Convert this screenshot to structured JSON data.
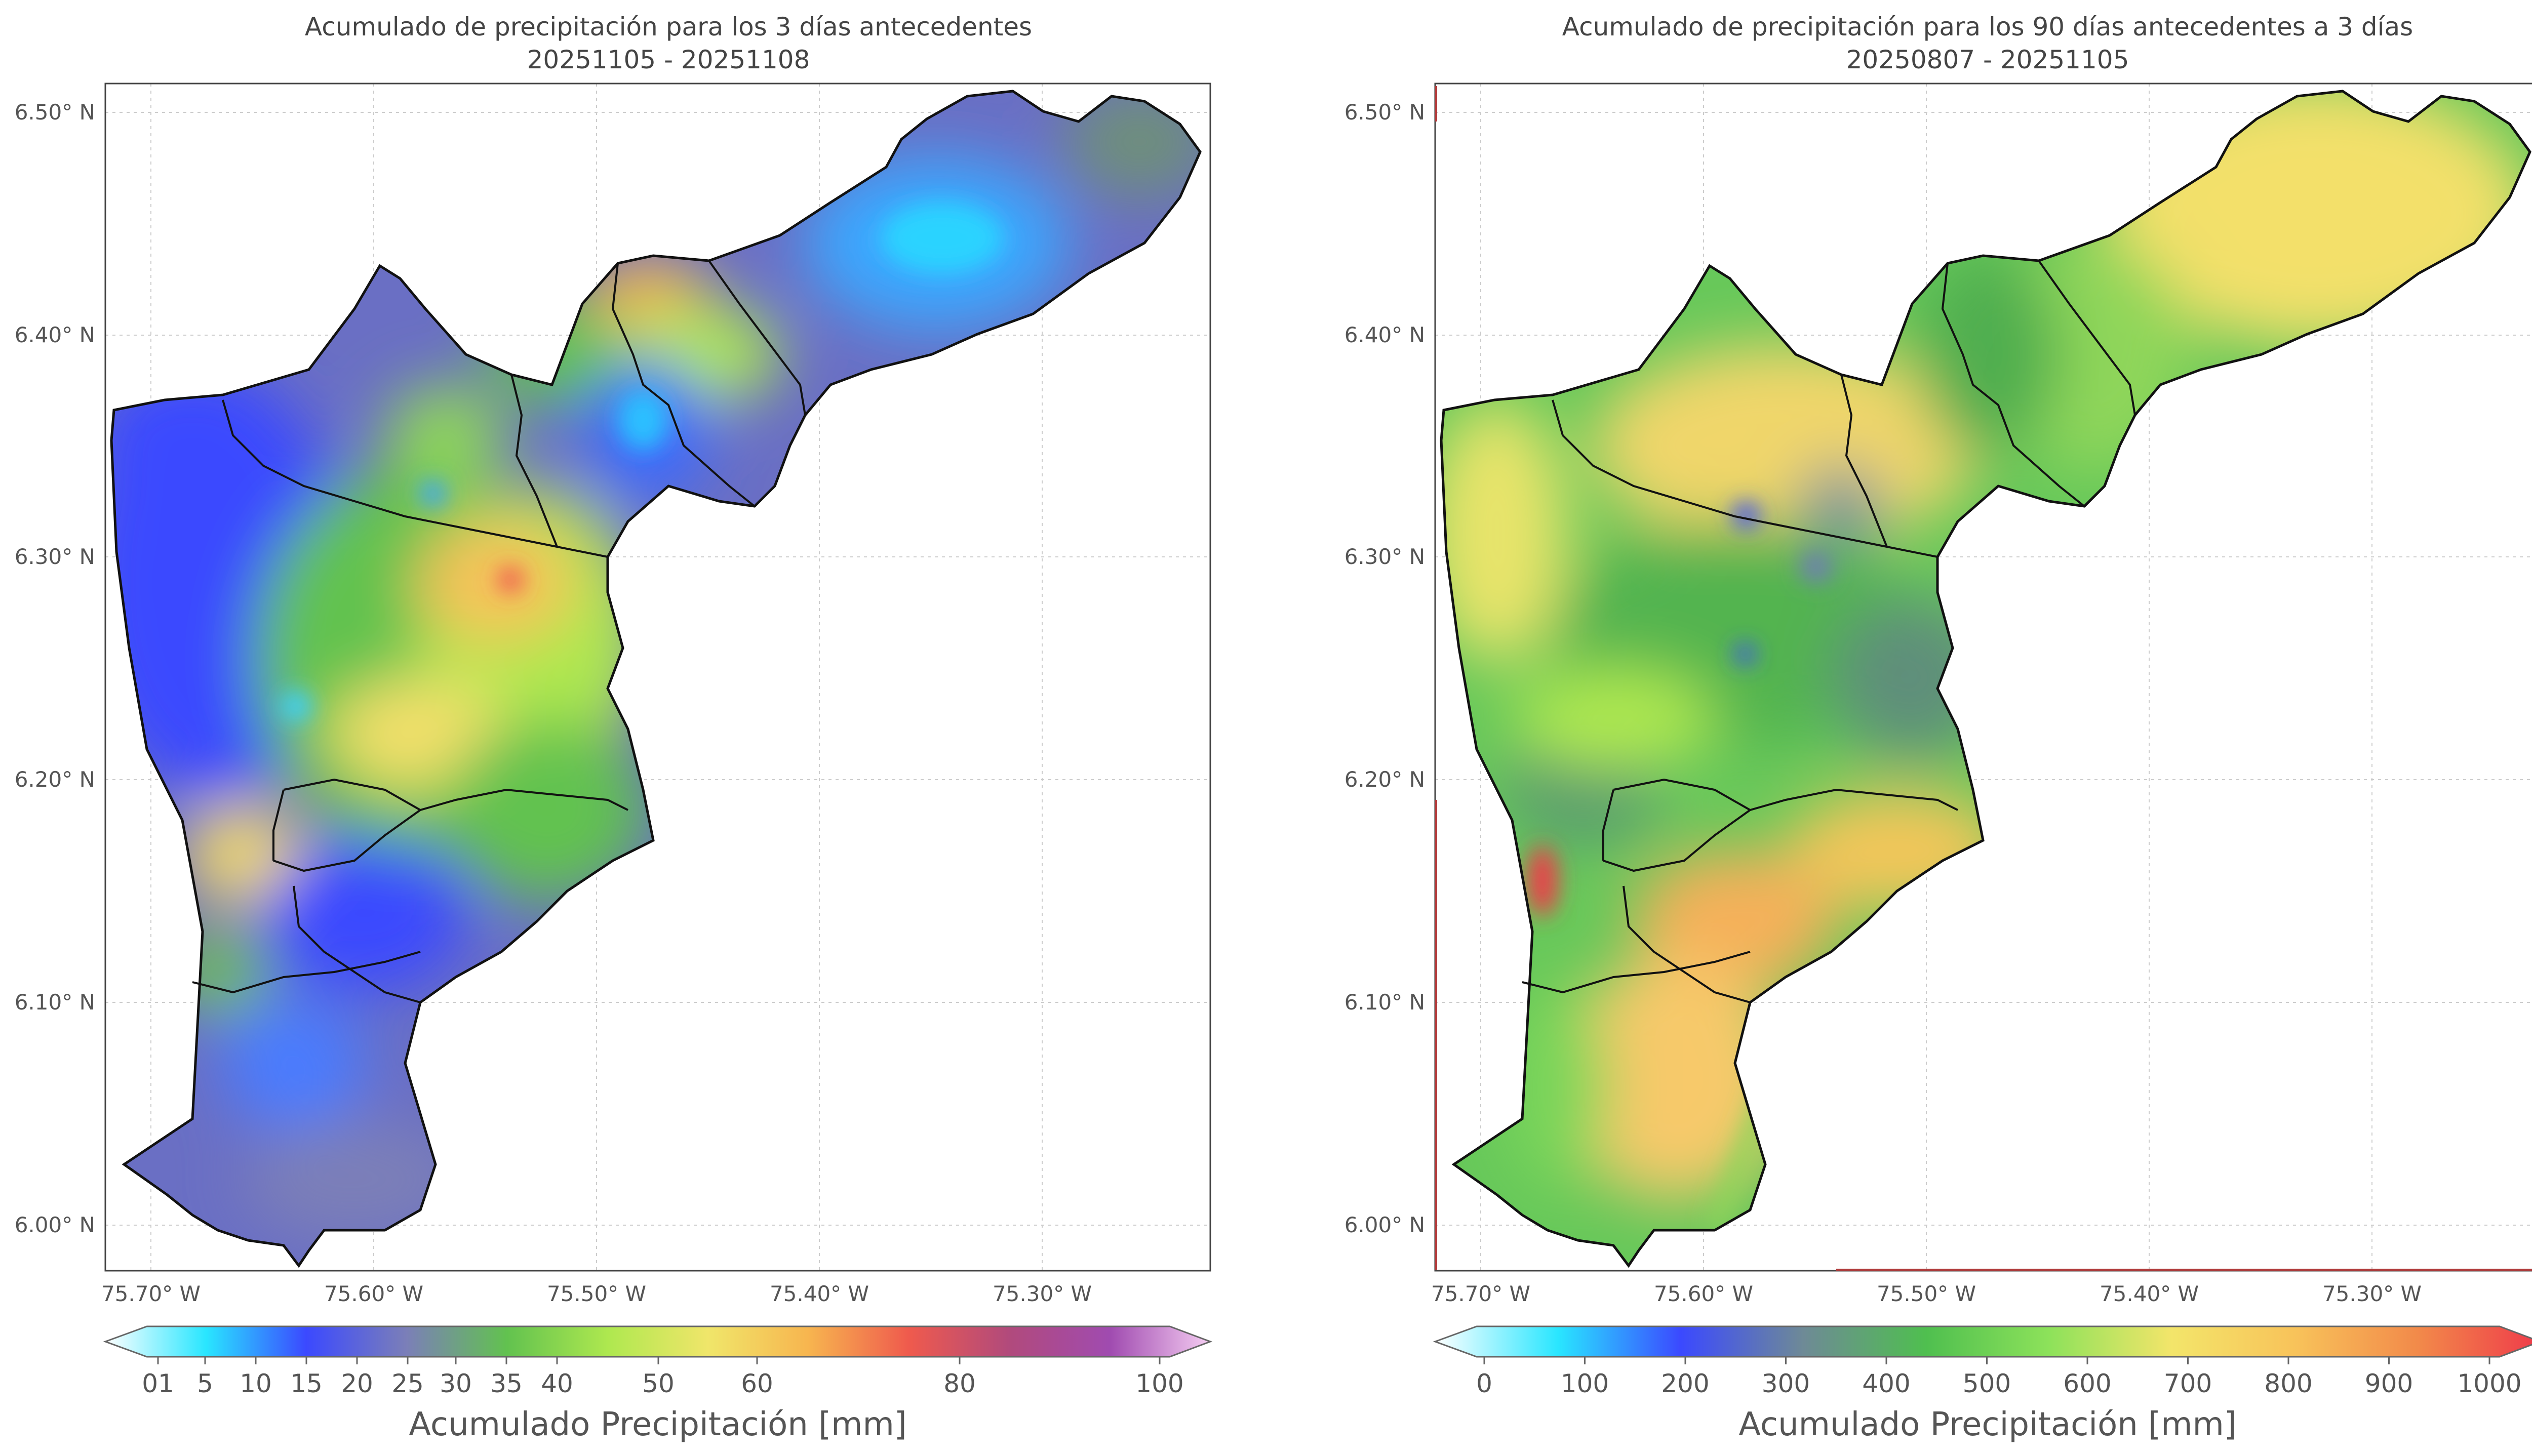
{
  "maps": [
    {
      "title_line1": "Acumulado de precipitación para los 3 días antecedentes",
      "title_line2": "20251105 - 20251108",
      "colorbar_label": "Acumulado Precipitación [mm]",
      "colorbar_ticks": [
        "01",
        "5",
        "10",
        "15",
        "20",
        "25",
        "30",
        "35",
        "40",
        "50",
        "60",
        "80",
        "100"
      ],
      "colors": [
        "#ffffff",
        "#29e6ff",
        "#3b49ff",
        "#7b7fb8",
        "#62c24f",
        "#aee84f",
        "#f0e66a",
        "#f7b54f",
        "#ef5a4d",
        "#b14a7c",
        "#a04bb0",
        "#f5cdf2"
      ]
    },
    {
      "title_line1": "Acumulado de precipitación para los 90 días antecedentes a 3 días",
      "title_line2": "20250807 - 20251105",
      "colorbar_label": "Acumulado Precipitación [mm]",
      "colorbar_ticks": [
        "0",
        "100",
        "200",
        "300",
        "400",
        "500",
        "600",
        "700",
        "800",
        "900",
        "1000"
      ],
      "colors": [
        "#ffffff",
        "#29e6ff",
        "#3b49ff",
        "#6e8a96",
        "#4fbf4f",
        "#8de25a",
        "#f3e56a",
        "#f8c35a",
        "#f28a4a",
        "#ef3a4a"
      ]
    }
  ],
  "axes": {
    "lat_ticks": [
      "6.50° N",
      "6.40° N",
      "6.30° N",
      "6.20° N",
      "6.10° N",
      "6.00° N"
    ],
    "lon_ticks": [
      "75.70° W",
      "75.60° W",
      "75.50° W",
      "75.40° W",
      "75.30° W"
    ],
    "lat_values": [
      6.5,
      6.4,
      6.3,
      6.2,
      6.1,
      6.0
    ],
    "lon_values": [
      -75.7,
      -75.6,
      -75.5,
      -75.4,
      -75.3
    ]
  }
}
